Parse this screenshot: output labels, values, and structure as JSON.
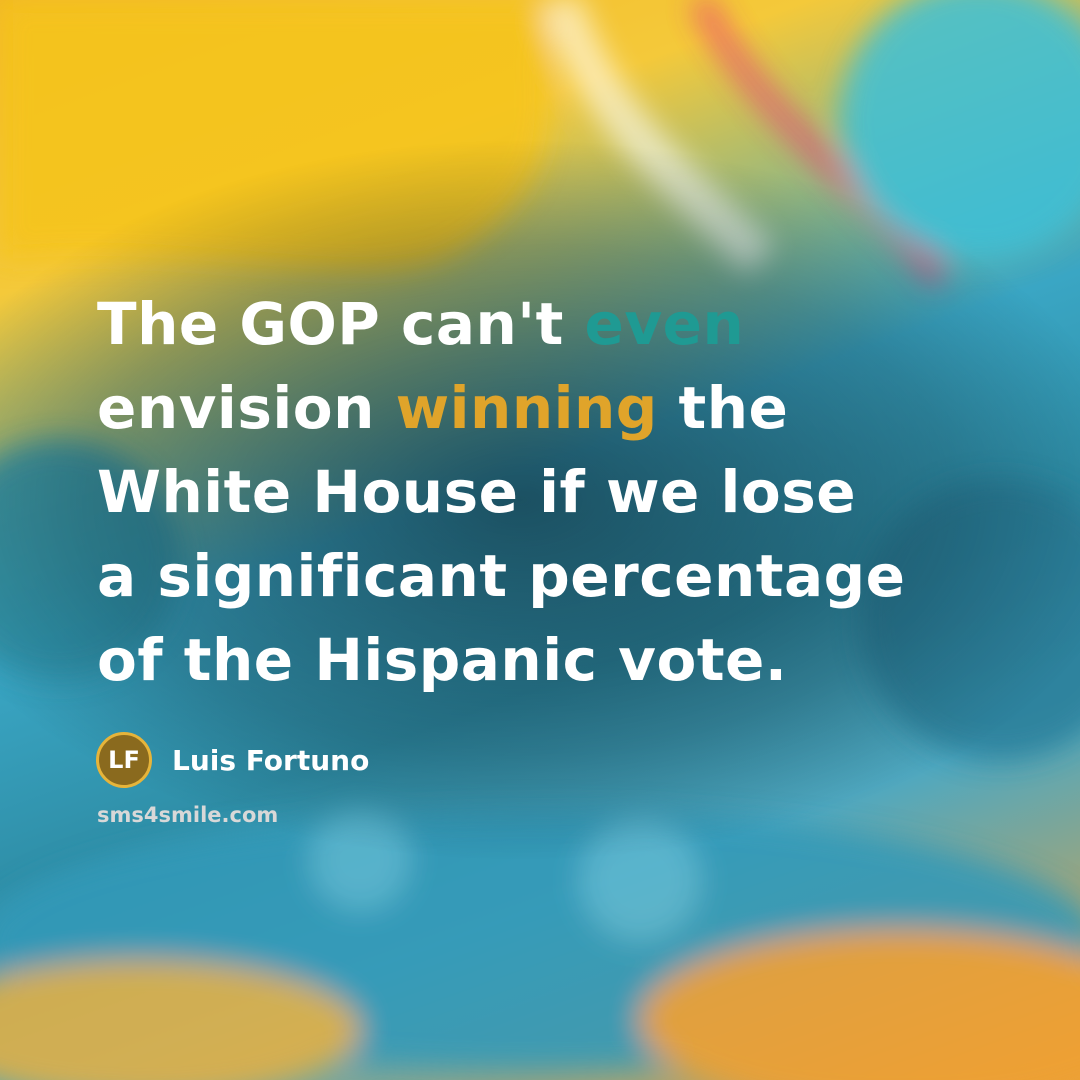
{
  "quote": {
    "lines": [
      [
        {
          "text": "The GOP can't "
        },
        {
          "text": "even",
          "color": "#1f9a93"
        }
      ],
      [
        {
          "text": "envision "
        },
        {
          "text": "winning",
          "color": "#e0a42a"
        },
        {
          "text": " the"
        }
      ],
      [
        {
          "text": "White House if we lose"
        }
      ],
      [
        {
          "text": "a significant percentage"
        }
      ],
      [
        {
          "text": "of the Hispanic vote."
        }
      ]
    ]
  },
  "author": {
    "initials": "LF",
    "name": "Luis Fortuno"
  },
  "website": "sms4smile.com"
}
